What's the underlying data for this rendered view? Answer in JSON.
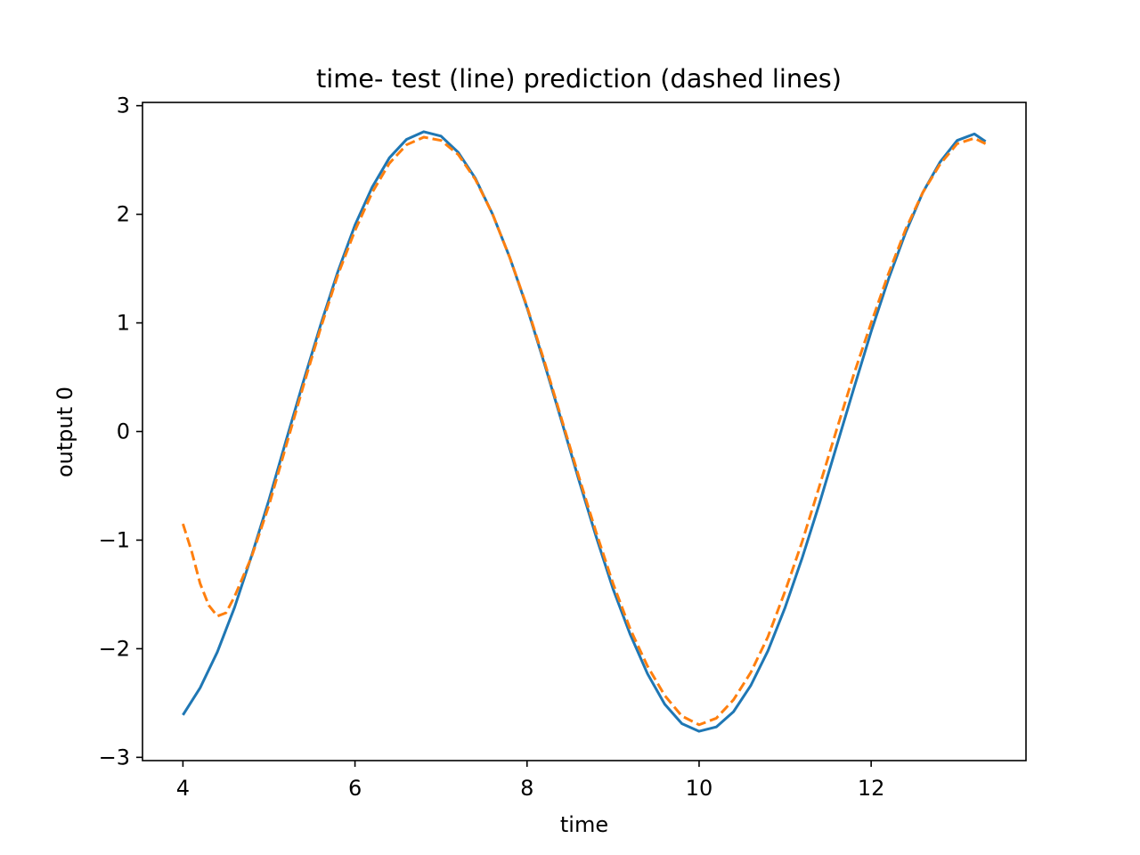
{
  "chart_data": {
    "type": "line",
    "title": "time- test (line) prediction (dashed lines)",
    "xlabel": "time",
    "ylabel": "output 0",
    "xlim": [
      3.53,
      13.8
    ],
    "ylim": [
      -3.03,
      3.03
    ],
    "x_ticks": [
      4,
      6,
      8,
      10,
      12
    ],
    "x_tick_labels": [
      "4",
      "6",
      "8",
      "10",
      "12"
    ],
    "y_ticks": [
      -3,
      -2,
      -1,
      0,
      1,
      2,
      3
    ],
    "y_tick_labels": [
      "−3",
      "−2",
      "−1",
      "0",
      "1",
      "2",
      "3"
    ],
    "grid": false,
    "legend": "none",
    "series": [
      {
        "style": "solid",
        "color": "#1f77b4",
        "x": [
          4.0,
          4.2,
          4.4,
          4.6,
          4.8,
          5.0,
          5.2,
          5.4,
          5.6,
          5.8,
          6.0,
          6.2,
          6.4,
          6.6,
          6.8,
          7.0,
          7.2,
          7.4,
          7.6,
          7.8,
          8.0,
          8.2,
          8.4,
          8.6,
          8.8,
          9.0,
          9.2,
          9.4,
          9.6,
          9.8,
          10.0,
          10.2,
          10.4,
          10.6,
          10.8,
          11.0,
          11.2,
          11.4,
          11.6,
          11.8,
          12.0,
          12.2,
          12.4,
          12.6,
          12.8,
          13.0,
          13.2,
          13.33
        ],
        "y": [
          -2.61,
          -2.36,
          -2.03,
          -1.62,
          -1.14,
          -0.63,
          -0.08,
          0.46,
          0.98,
          1.47,
          1.9,
          2.25,
          2.52,
          2.69,
          2.76,
          2.72,
          2.57,
          2.33,
          2.0,
          1.6,
          1.14,
          0.63,
          0.1,
          -0.44,
          -0.96,
          -1.45,
          -1.87,
          -2.23,
          -2.51,
          -2.69,
          -2.76,
          -2.72,
          -2.58,
          -2.34,
          -2.02,
          -1.62,
          -1.16,
          -0.66,
          -0.13,
          0.4,
          0.92,
          1.4,
          1.83,
          2.2,
          2.48,
          2.68,
          2.74,
          2.67
        ]
      },
      {
        "style": "dashed",
        "color": "#ff7f0e",
        "x": [
          4.0,
          4.1,
          4.2,
          4.3,
          4.4,
          4.5,
          4.6,
          4.8,
          5.0,
          5.2,
          5.4,
          5.6,
          5.8,
          6.0,
          6.2,
          6.4,
          6.6,
          6.8,
          7.0,
          7.2,
          7.4,
          7.6,
          7.8,
          8.0,
          8.2,
          8.4,
          8.6,
          8.8,
          9.0,
          9.2,
          9.4,
          9.6,
          9.8,
          10.0,
          10.2,
          10.4,
          10.6,
          10.8,
          11.0,
          11.2,
          11.4,
          11.6,
          11.8,
          12.0,
          12.2,
          12.4,
          12.6,
          12.8,
          13.0,
          13.2,
          13.33
        ],
        "y": [
          -0.85,
          -1.1,
          -1.4,
          -1.6,
          -1.7,
          -1.67,
          -1.52,
          -1.15,
          -0.68,
          -0.13,
          0.42,
          0.95,
          1.44,
          1.85,
          2.2,
          2.47,
          2.64,
          2.71,
          2.68,
          2.55,
          2.32,
          2.0,
          1.6,
          1.15,
          0.65,
          0.12,
          -0.41,
          -0.92,
          -1.4,
          -1.82,
          -2.16,
          -2.43,
          -2.62,
          -2.7,
          -2.64,
          -2.47,
          -2.22,
          -1.89,
          -1.47,
          -1.01,
          -0.5,
          0.02,
          0.53,
          1.0,
          1.45,
          1.86,
          2.2,
          2.46,
          2.65,
          2.7,
          2.65
        ]
      }
    ]
  }
}
